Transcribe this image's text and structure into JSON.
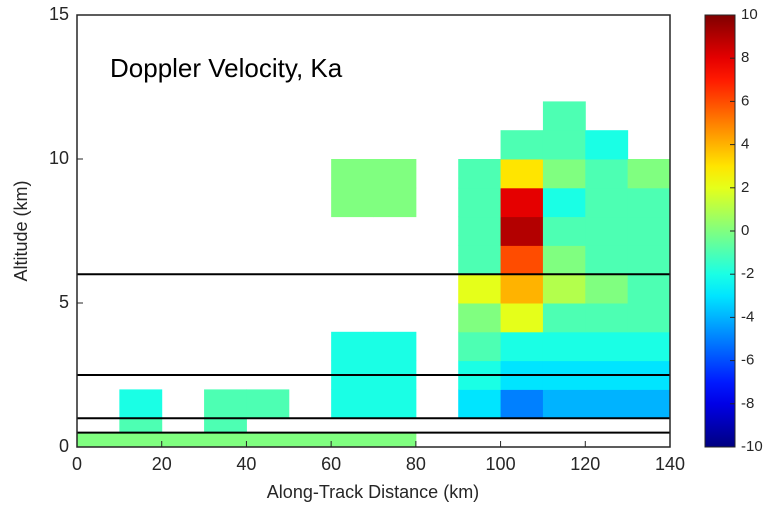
{
  "chart_data": {
    "type": "heatmap",
    "annotation": "Doppler Velocity, Ka",
    "xlabel": "Along-Track Distance (km)",
    "ylabel": "Altitude (km)",
    "xlim": [
      0,
      140
    ],
    "ylim": [
      0,
      15
    ],
    "xticks": [
      0,
      20,
      40,
      60,
      80,
      100,
      120,
      140
    ],
    "yticks": [
      0,
      5,
      10,
      15
    ],
    "x_edges": [
      0,
      10,
      20,
      30,
      40,
      50,
      60,
      70,
      80,
      90,
      100,
      110,
      120,
      130,
      140
    ],
    "y_edges": [
      0,
      0.5,
      1,
      2,
      3,
      4,
      5,
      6,
      7,
      8,
      9,
      10,
      11,
      12
    ],
    "z": [
      [
        0,
        0,
        0,
        0,
        0,
        0,
        0,
        0,
        null,
        null,
        null,
        null,
        null,
        null
      ],
      [
        null,
        -1,
        null,
        -1,
        null,
        null,
        null,
        null,
        null,
        null,
        null,
        null,
        null,
        null
      ],
      [
        null,
        -2,
        null,
        -1,
        -1,
        null,
        -2,
        -2,
        null,
        -3,
        -5,
        -4,
        -4,
        -4
      ],
      [
        null,
        null,
        null,
        null,
        null,
        null,
        -2,
        -2,
        null,
        -2,
        -3,
        -3,
        -3,
        -3
      ],
      [
        null,
        null,
        null,
        null,
        null,
        null,
        -2,
        -2,
        null,
        -1,
        -2,
        -2,
        -2,
        -2
      ],
      [
        null,
        null,
        null,
        null,
        null,
        null,
        null,
        null,
        null,
        0,
        2,
        -1,
        -1,
        -1
      ],
      [
        null,
        null,
        null,
        null,
        null,
        null,
        null,
        null,
        null,
        2,
        4,
        1,
        0,
        -1
      ],
      [
        null,
        null,
        null,
        null,
        null,
        null,
        null,
        null,
        null,
        -1,
        6,
        0,
        -1,
        -1
      ],
      [
        null,
        null,
        null,
        null,
        null,
        null,
        null,
        null,
        null,
        -1,
        9,
        -1,
        -1,
        -1
      ],
      [
        null,
        null,
        null,
        null,
        null,
        null,
        0,
        0,
        null,
        -1,
        8,
        -2,
        -1,
        -1
      ],
      [
        null,
        null,
        null,
        null,
        null,
        null,
        0,
        0,
        null,
        -1,
        3,
        0,
        -1,
        0
      ],
      [
        null,
        null,
        null,
        null,
        null,
        null,
        null,
        null,
        null,
        null,
        -1,
        -1,
        -2,
        null
      ],
      [
        null,
        null,
        null,
        null,
        null,
        null,
        null,
        null,
        null,
        null,
        null,
        -1,
        null,
        null
      ]
    ],
    "hlines": [
      6,
      2.5,
      1,
      0.5
    ],
    "colormap": "jet",
    "clim": [
      -10,
      10
    ],
    "cticks": [
      -10,
      -8,
      -6,
      -4,
      -2,
      0,
      2,
      4,
      6,
      8,
      10
    ]
  }
}
